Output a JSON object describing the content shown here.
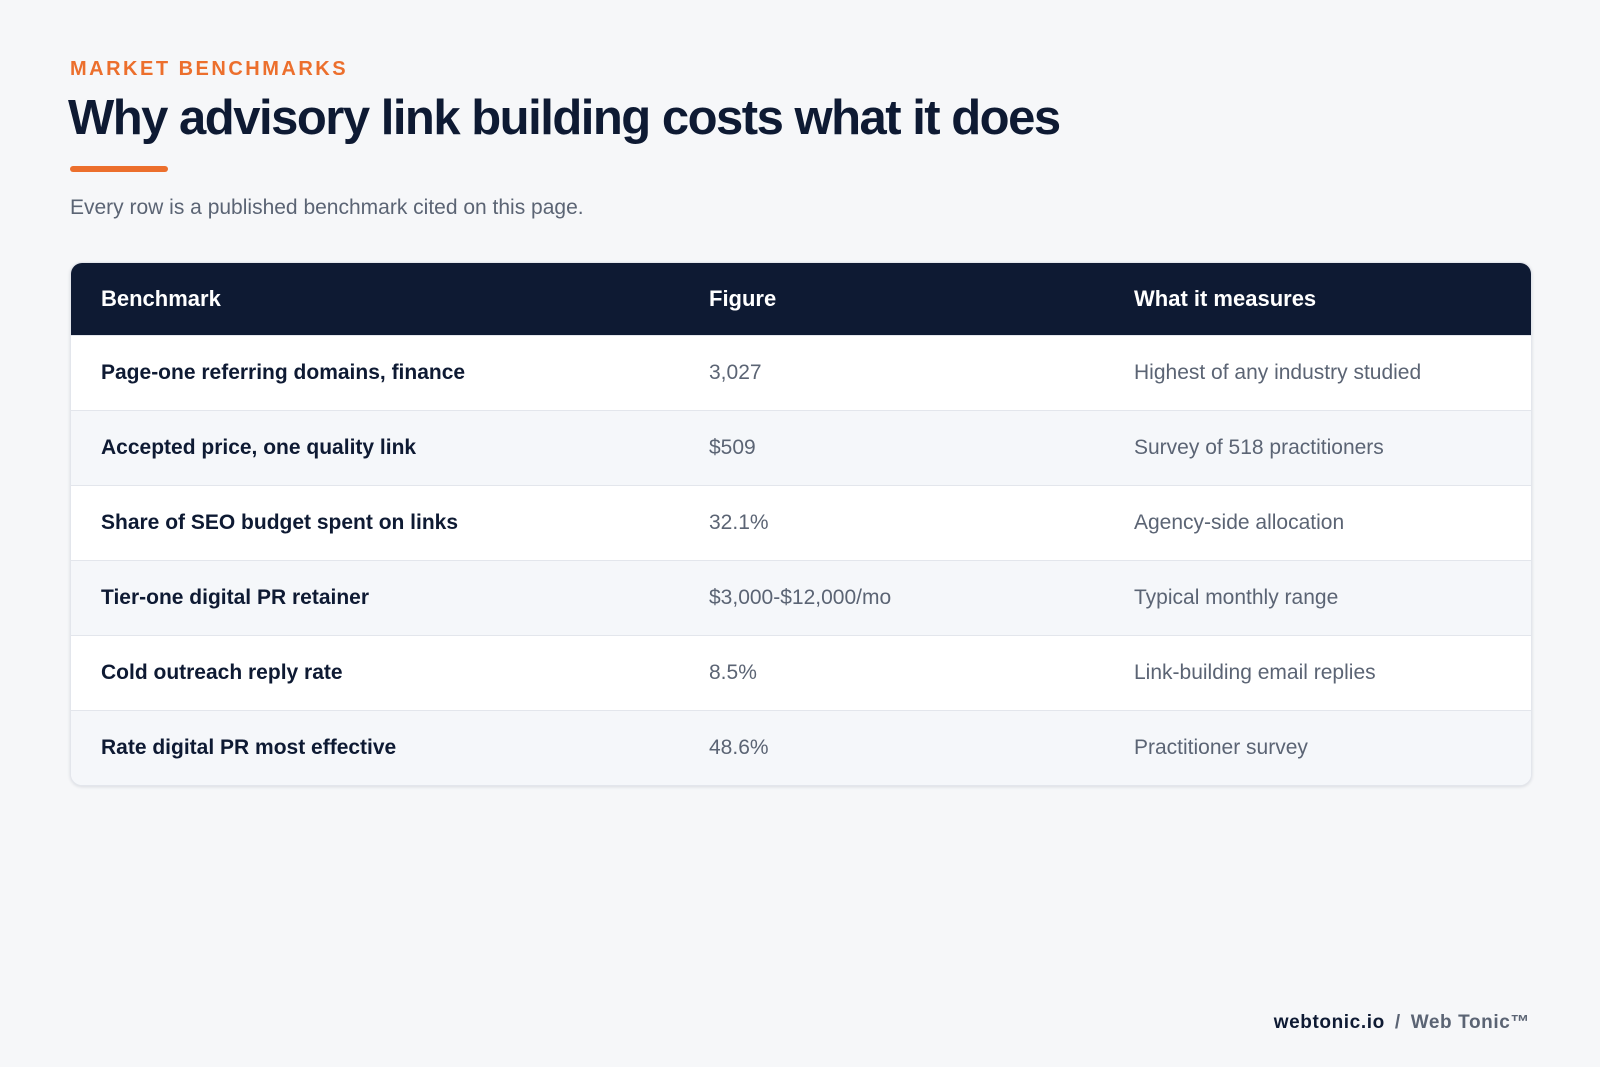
{
  "header": {
    "eyebrow": "MARKET BENCHMARKS",
    "title": "Why advisory link building costs what it does",
    "subtitle": "Every row is a published benchmark cited on this page."
  },
  "table": {
    "columns": [
      "Benchmark",
      "Figure",
      "What it measures"
    ],
    "rows": [
      [
        "Page-one referring domains, finance",
        "3,027",
        "Highest of any industry studied"
      ],
      [
        "Accepted price, one quality link",
        "$509",
        "Survey of 518 practitioners"
      ],
      [
        "Share of SEO budget spent on links",
        "32.1%",
        "Agency-side allocation"
      ],
      [
        "Tier-one digital PR retainer",
        "$3,000-$12,000/mo",
        "Typical monthly range"
      ],
      [
        "Cold outreach reply rate",
        "8.5%",
        "Link-building email replies"
      ],
      [
        "Rate digital PR most effective",
        "48.6%",
        "Practitioner survey"
      ]
    ]
  },
  "footer": {
    "domain": "webtonic.io",
    "separator": "/",
    "brand": "Web Tonic™"
  }
}
